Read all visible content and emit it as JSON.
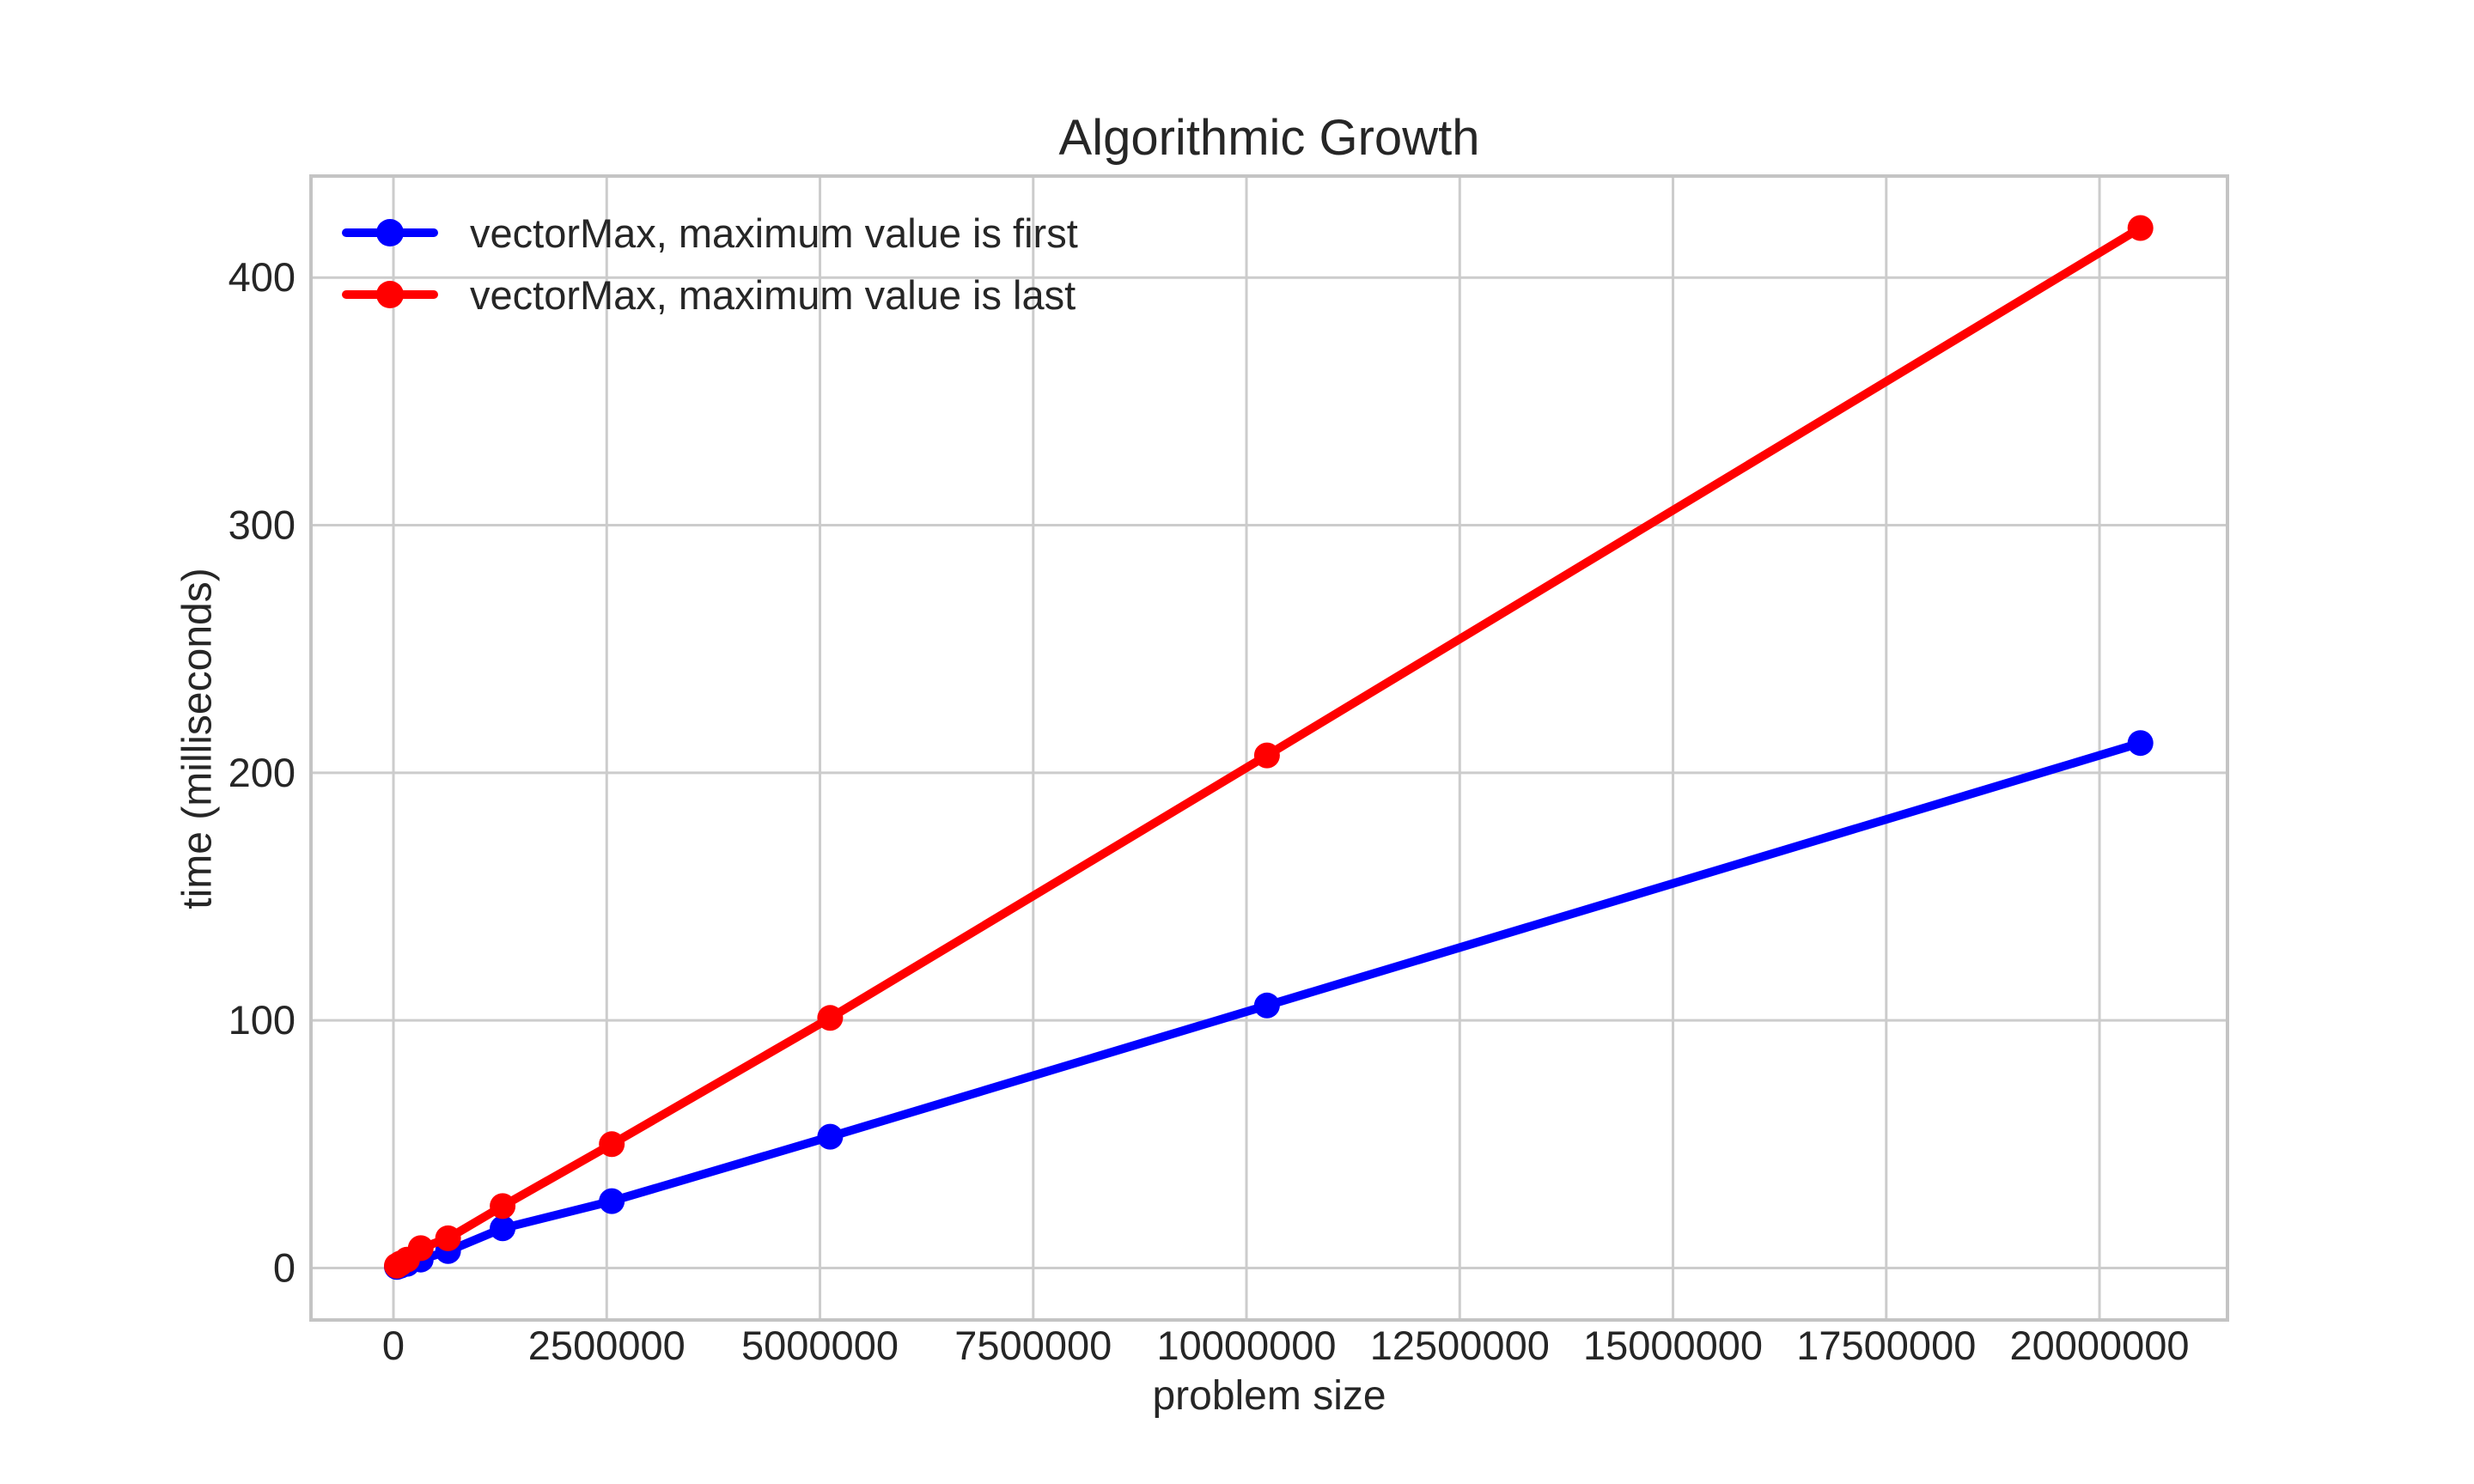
{
  "chart_data": {
    "type": "line",
    "title": "Algorithmic Growth",
    "xlabel": "problem size",
    "ylabel": "time (milliseconds)",
    "x": [
      40000,
      80000,
      160000,
      320000,
      640000,
      1280000,
      2560000,
      5120000,
      10240000,
      20480000
    ],
    "series": [
      {
        "name": "vectorMax, maximum value is first",
        "color": "#0000ff",
        "values": [
          0.4,
          0.9,
          1.7,
          3.4,
          6.8,
          16,
          27,
          53,
          106,
          212
        ]
      },
      {
        "name": "vectorMax, maximum value is last",
        "color": "#ff0000",
        "values": [
          0.9,
          1.8,
          3.4,
          8,
          12,
          25,
          50,
          101,
          207,
          420
        ]
      }
    ],
    "x_ticks": [
      0,
      2500000,
      5000000,
      7500000,
      10000000,
      12500000,
      15000000,
      17500000,
      20000000
    ],
    "x_tick_labels": [
      "0",
      "2500000",
      "5000000",
      "7500000",
      "10000000",
      "12500000",
      "15000000",
      "17500000",
      "20000000"
    ],
    "y_ticks": [
      0,
      100,
      200,
      300,
      400
    ],
    "y_tick_labels": [
      "0",
      "100",
      "200",
      "300",
      "400"
    ],
    "xlim": [
      -967000,
      21500000
    ],
    "ylim": [
      -21,
      441
    ],
    "grid": true,
    "legend_position": "upper left",
    "style": {
      "background": "#ffffff",
      "grid_color": "#cccccc",
      "spine_color": "#c4c4c4",
      "text_color": "#262626",
      "line_width": 10,
      "marker": "o",
      "marker_radius": 15,
      "tick_font_size": 47
    }
  }
}
